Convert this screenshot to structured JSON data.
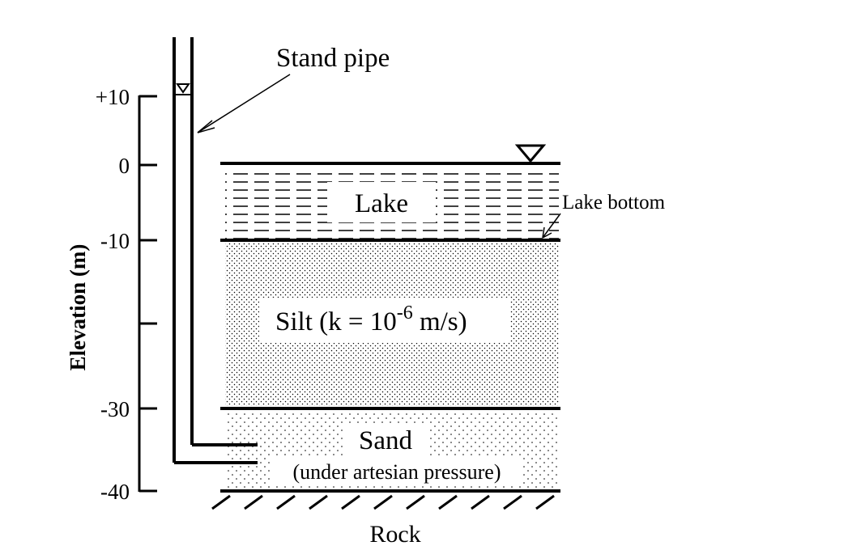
{
  "diagram": {
    "stand_pipe_label": "Stand pipe",
    "lake_label": "Lake",
    "lake_bottom_label": "Lake bottom",
    "silt_label_main": "Silt (k = 10",
    "silt_label_exp": "-6",
    "silt_label_unit": " m/s)",
    "sand_label": "Sand",
    "sand_sublabel": "(under artesian pressure)",
    "rock_label": "Rock",
    "axis": {
      "title": "Elevation (m)",
      "ticks": [
        "+10",
        "0",
        "-10",
        "",
        "-30",
        "-40"
      ]
    }
  }
}
